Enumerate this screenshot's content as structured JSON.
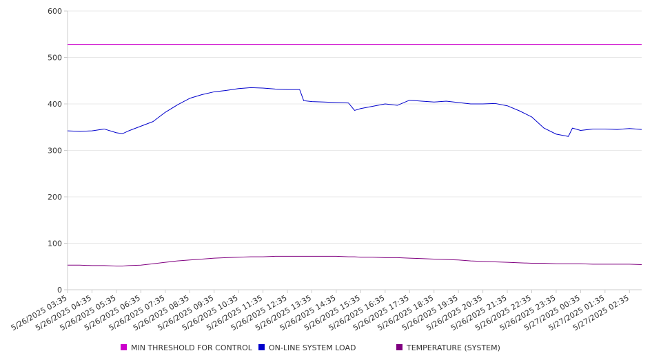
{
  "chart_data": {
    "type": "line",
    "title": "",
    "xlabel": "",
    "ylabel": "",
    "ylim": [
      0,
      600
    ],
    "grid": true,
    "legend_position": "bottom",
    "y_ticks": [
      0,
      100,
      200,
      300,
      400,
      500,
      600
    ],
    "x_tick_labels": [
      "5/26/2025 03:35",
      "5/26/2025 04:35",
      "5/26/2025 05:35",
      "5/26/2025 06:35",
      "5/26/2025 07:35",
      "5/26/2025 08:35",
      "5/26/2025 09:35",
      "5/26/2025 10:35",
      "5/26/2025 11:35",
      "5/26/2025 12:35",
      "5/26/2025 13:35",
      "5/26/2025 14:35",
      "5/26/2025 15:35",
      "5/26/2025 16:35",
      "5/26/2025 17:35",
      "5/26/2025 18:35",
      "5/26/2025 19:35",
      "5/26/2025 20:35",
      "5/26/2025 21:35",
      "5/26/2025 22:35",
      "5/26/2025 23:35",
      "5/27/2025 00:35",
      "5/27/2025 01:35",
      "5/27/2025 02:35"
    ],
    "x": [
      "5/26/2025 03:35",
      "5/26/2025 04:05",
      "5/26/2025 04:35",
      "5/26/2025 05:05",
      "5/26/2025 05:35",
      "5/26/2025 05:50",
      "5/26/2025 06:05",
      "5/26/2025 06:35",
      "5/26/2025 07:05",
      "5/26/2025 07:35",
      "5/26/2025 08:05",
      "5/26/2025 08:35",
      "5/26/2025 09:05",
      "5/26/2025 09:35",
      "5/26/2025 10:05",
      "5/26/2025 10:35",
      "5/26/2025 11:05",
      "5/26/2025 11:35",
      "5/26/2025 12:05",
      "5/26/2025 12:35",
      "5/26/2025 13:05",
      "5/26/2025 13:15",
      "5/26/2025 13:35",
      "5/26/2025 14:05",
      "5/26/2025 14:35",
      "5/26/2025 15:05",
      "5/26/2025 15:20",
      "5/26/2025 15:35",
      "5/26/2025 16:05",
      "5/26/2025 16:35",
      "5/26/2025 17:05",
      "5/26/2025 17:35",
      "5/26/2025 18:05",
      "5/26/2025 18:35",
      "5/26/2025 19:05",
      "5/26/2025 19:35",
      "5/26/2025 20:05",
      "5/26/2025 20:35",
      "5/26/2025 21:05",
      "5/26/2025 21:35",
      "5/26/2025 22:05",
      "5/26/2025 22:35",
      "5/26/2025 23:05",
      "5/26/2025 23:35",
      "5/27/2025 00:05",
      "5/27/2025 00:15",
      "5/27/2025 00:35",
      "5/27/2025 01:05",
      "5/27/2025 01:35",
      "5/27/2025 02:05",
      "5/27/2025 02:35",
      "5/27/2025 03:05"
    ],
    "series": [
      {
        "name": "MIN THRESHOLD FOR CONTROL",
        "color": "#cc00cc",
        "values": [
          528,
          528,
          528,
          528,
          528,
          528,
          528,
          528,
          528,
          528,
          528,
          528,
          528,
          528,
          528,
          528,
          528,
          528,
          528,
          528,
          528,
          528,
          528,
          528,
          528,
          528,
          528,
          528,
          528,
          528,
          528,
          528,
          528,
          528,
          528,
          528,
          528,
          528,
          528,
          528,
          528,
          528,
          528,
          528,
          528,
          528,
          528,
          528,
          528,
          528,
          528,
          528
        ]
      },
      {
        "name": "ON-LINE SYSTEM LOAD",
        "color": "#0000cc",
        "values": [
          342,
          341,
          342,
          346,
          338,
          336,
          342,
          352,
          362,
          382,
          398,
          412,
          420,
          426,
          429,
          433,
          435,
          434,
          432,
          431,
          431,
          407,
          405,
          404,
          403,
          402,
          386,
          390,
          395,
          400,
          397,
          408,
          406,
          404,
          406,
          403,
          400,
          400,
          401,
          396,
          385,
          372,
          348,
          335,
          330,
          348,
          343,
          346,
          346,
          345,
          347,
          345
        ]
      },
      {
        "name": "TEMPERATURE (SYSTEM)",
        "color": "#800080",
        "values": [
          53,
          53,
          52,
          52,
          51,
          51,
          52,
          53,
          56,
          59,
          62,
          64,
          66,
          68,
          69,
          70,
          71,
          71,
          72,
          72,
          72,
          72,
          72,
          72,
          72,
          71,
          71,
          70,
          70,
          69,
          69,
          68,
          67,
          66,
          65,
          64,
          62,
          61,
          60,
          59,
          58,
          57,
          57,
          56,
          56,
          56,
          56,
          55,
          55,
          55,
          55,
          54
        ]
      }
    ]
  }
}
